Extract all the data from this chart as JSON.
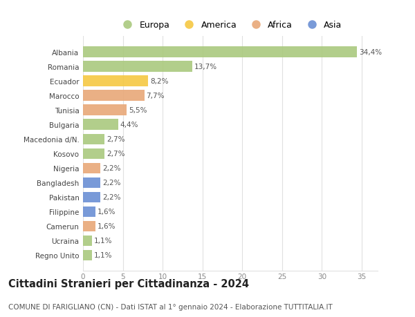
{
  "countries": [
    "Albania",
    "Romania",
    "Ecuador",
    "Marocco",
    "Tunisia",
    "Bulgaria",
    "Macedonia d/N.",
    "Kosovo",
    "Nigeria",
    "Bangladesh",
    "Pakistan",
    "Filippine",
    "Camerun",
    "Ucraina",
    "Regno Unito"
  ],
  "values": [
    34.4,
    13.7,
    8.2,
    7.7,
    5.5,
    4.4,
    2.7,
    2.7,
    2.2,
    2.2,
    2.2,
    1.6,
    1.6,
    1.1,
    1.1
  ],
  "labels": [
    "34,4%",
    "13,7%",
    "8,2%",
    "7,7%",
    "5,5%",
    "4,4%",
    "2,7%",
    "2,7%",
    "2,2%",
    "2,2%",
    "2,2%",
    "1,6%",
    "1,6%",
    "1,1%",
    "1,1%"
  ],
  "continents": [
    "Europa",
    "Europa",
    "America",
    "Africa",
    "Africa",
    "Europa",
    "Europa",
    "Europa",
    "Africa",
    "Asia",
    "Asia",
    "Asia",
    "Africa",
    "Europa",
    "Europa"
  ],
  "colors": {
    "Europa": "#aac97e",
    "America": "#f5c842",
    "Africa": "#e8a878",
    "Asia": "#6b8fd4"
  },
  "xlim": [
    0,
    37
  ],
  "xticks": [
    0,
    5,
    10,
    15,
    20,
    25,
    30,
    35
  ],
  "title": "Cittadini Stranieri per Cittadinanza - 2024",
  "subtitle": "COMUNE DI FARIGLIANO (CN) - Dati ISTAT al 1° gennaio 2024 - Elaborazione TUTTITALIA.IT",
  "background_color": "#ffffff",
  "grid_color": "#e0e0e0",
  "bar_height": 0.72,
  "label_fontsize": 7.5,
  "tick_fontsize": 7.5,
  "title_fontsize": 10.5,
  "subtitle_fontsize": 7.5,
  "legend_order": [
    "Europa",
    "America",
    "Africa",
    "Asia"
  ]
}
